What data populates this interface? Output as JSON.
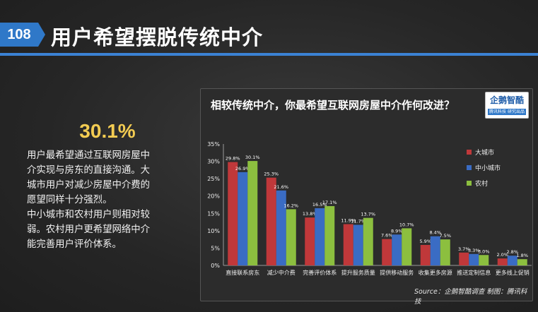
{
  "header": {
    "slide_number": "108",
    "title": "用户希望摆脱传统中介"
  },
  "left": {
    "stat": "30.1%",
    "lines": [
      "用户最希望通过互联网房屋中",
      "介实现与房东的直接沟通。大",
      "城市用户对减少房屋中介费的",
      "愿望同样十分强烈。",
      "中小城市和农村用户则相对较",
      "弱。农村用户更希望网络中介",
      "能完善用户评价体系。"
    ]
  },
  "logo": {
    "name": "企鹅智酷",
    "tagline": "腾讯科技 研究出品"
  },
  "source": "Source：企鹅智酷调查  制图：腾讯科技",
  "colors": {
    "big_city": "#c0383a",
    "small_city": "#3a6cc4",
    "rural": "#8cbf3f",
    "accent": "#f3cc52"
  },
  "chart_data": {
    "type": "bar",
    "title": "相较传统中介，你最希望互联网房屋中介作何改进？",
    "categories": [
      "直接联系房东",
      "减少中介费",
      "完善评价体系",
      "提升服务质量",
      "提供移动服务",
      "收集更多房源",
      "推送定制信息",
      "更多线上促销"
    ],
    "series": [
      {
        "name": "大城市",
        "values": [
          29.8,
          25.3,
          13.8,
          11.9,
          7.6,
          5.9,
          3.7,
          2.0
        ],
        "labels": [
          "29.8%",
          "25.3%",
          "13.8%",
          "11.9%",
          "7.6%",
          "5.9%",
          "3.7%",
          "2.0%"
        ]
      },
      {
        "name": "中小城市",
        "values": [
          26.9,
          21.6,
          16.5,
          11.7,
          8.9,
          8.4,
          3.3,
          2.8
        ],
        "labels": [
          "26.9%",
          "21.6%",
          "16.5%",
          "11.7%",
          "8.9%",
          "8.4%",
          "3.3%",
          "2.8%"
        ]
      },
      {
        "name": "农村",
        "values": [
          30.1,
          16.2,
          17.1,
          13.7,
          10.7,
          7.5,
          3.0,
          1.8
        ],
        "labels": [
          "30.1%",
          "16.2%",
          "17.1%",
          "13.7%",
          "10.7%",
          "7.5%",
          "3.0%",
          "1.8%"
        ]
      }
    ],
    "ylim": [
      0,
      35
    ],
    "yticks": [
      0,
      5,
      10,
      15,
      20,
      25,
      30,
      35
    ],
    "ytick_labels": [
      "0%",
      "5%",
      "10%",
      "15%",
      "20%",
      "25%",
      "30%",
      "35%"
    ],
    "grid": false,
    "legend_position": "right"
  }
}
